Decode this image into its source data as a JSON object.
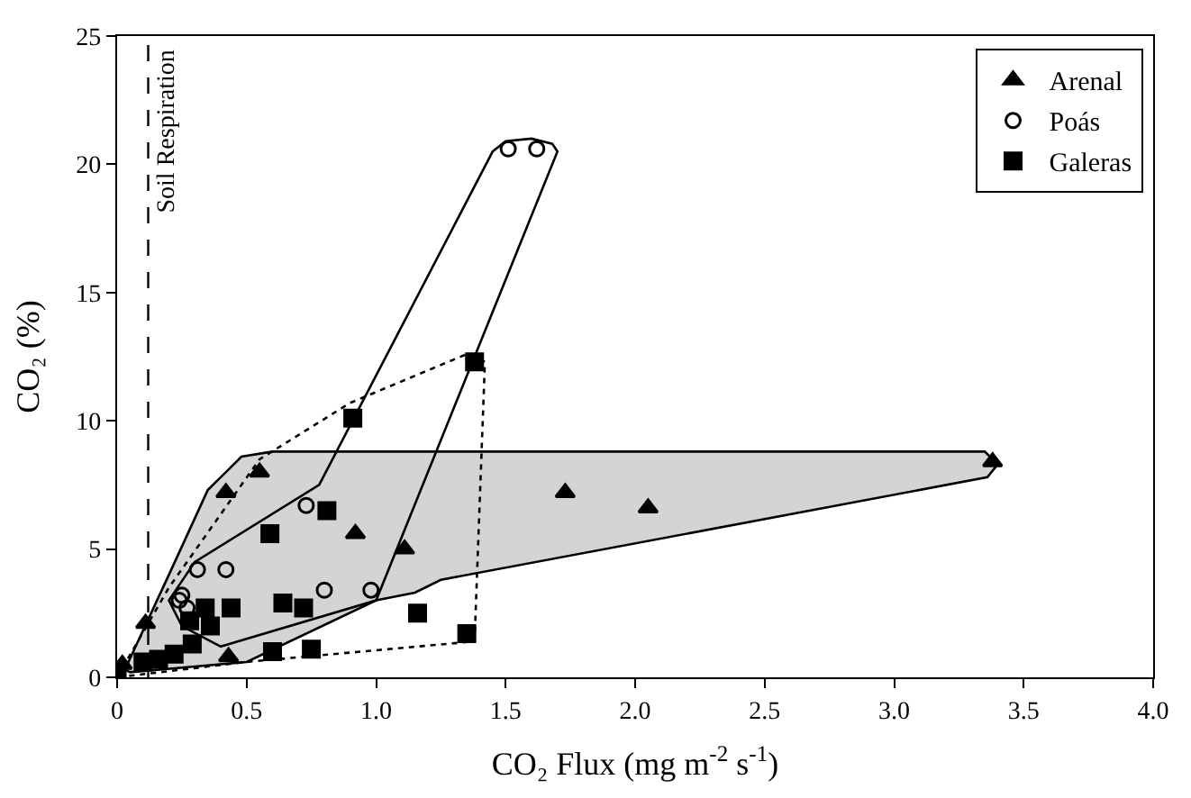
{
  "chart_data": {
    "type": "scatter",
    "xlabel": "CO₂ Flux (mg m$^{-2}$ s$^{-1}$)",
    "ylabel": "CO₂ (%)",
    "xlim": [
      0,
      4
    ],
    "ylim": [
      0,
      25
    ],
    "xticks": [
      0,
      0.5,
      {
        "value": 1,
        "label": "1.0"
      },
      1.5,
      {
        "value": 2,
        "label": "2.0"
      },
      2.5,
      {
        "value": 3,
        "label": "3.0"
      },
      3.5,
      {
        "value": 4,
        "label": "4.0"
      }
    ],
    "yticks": [
      0,
      5,
      10,
      15,
      20,
      25
    ],
    "legend": "top right",
    "grid": false,
    "ref_lines": [
      {
        "axis": "x",
        "value": 0.12,
        "label": "Soil Respiration",
        "color": "#000000",
        "line_style": "dashed"
      }
    ],
    "series": [
      {
        "name": "Arenal",
        "color": "#000000",
        "marker": "triangle",
        "x": [
          0.02,
          0.11,
          0.42,
          0.55,
          0.43,
          0.92,
          1.11,
          1.73,
          2.05,
          3.38
        ],
        "values": [
          0.5,
          2.1,
          7.2,
          8.0,
          0.8,
          5.6,
          5.0,
          7.2,
          6.6,
          8.4
        ]
      },
      {
        "name": "Poás",
        "color": "#000000",
        "marker": "circle-open",
        "x": [
          1.51,
          1.62,
          0.73,
          0.31,
          0.42,
          0.8,
          0.98,
          0.25,
          0.27,
          0.24
        ],
        "values": [
          20.6,
          20.6,
          6.7,
          4.2,
          4.2,
          3.4,
          3.4,
          3.2,
          2.7,
          3.0
        ]
      },
      {
        "name": "Galeras",
        "color": "#000000",
        "marker": "square",
        "x": [
          0.81,
          0.59,
          0.34,
          0.44,
          0.64,
          0.72,
          0.28,
          0.36,
          0.29,
          0.6,
          0.75,
          1.16,
          0.22,
          0.16,
          0.1,
          0.0,
          0.91,
          1.38,
          1.35
        ],
        "values": [
          6.5,
          5.6,
          2.7,
          2.7,
          2.9,
          2.7,
          2.2,
          2.0,
          1.3,
          1.0,
          1.1,
          2.5,
          0.9,
          0.7,
          0.6,
          0.1,
          10.1,
          12.3,
          1.7
        ]
      }
    ]
  }
}
